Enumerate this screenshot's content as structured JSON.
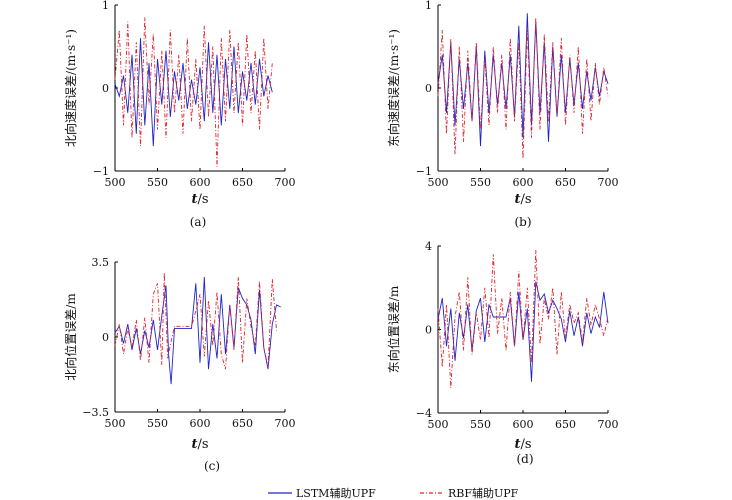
{
  "legend": {
    "lstm_label": "LSTM辅助UPF",
    "rbf_label": "RBF辅助UPF",
    "lstm_color": "#1f24c8",
    "rbf_color": "#e0202a"
  },
  "chart_data": [
    {
      "type": "line",
      "caption": "(a)",
      "ylabel": "北向速度误差/(m·s⁻¹)",
      "xlabel_italic": "t",
      "xlabel_unit": "/s",
      "xlim": [
        500,
        700
      ],
      "ylim": [
        -1,
        1
      ],
      "xticks": [
        500,
        550,
        600,
        650,
        700
      ],
      "yticks": [
        {
          "v": -1,
          "label": "−1"
        },
        {
          "v": 0,
          "label": "0"
        },
        {
          "v": 1,
          "label": "1"
        }
      ],
      "series": [
        {
          "name": "LSTM辅助UPF",
          "color": "#1f24c8",
          "dash": "",
          "x": [
            500,
            505,
            510,
            515,
            520,
            525,
            530,
            535,
            540,
            545,
            550,
            555,
            560,
            565,
            570,
            575,
            580,
            585,
            590,
            595,
            600,
            605,
            610,
            615,
            620,
            625,
            630,
            635,
            640,
            645,
            650,
            655,
            660,
            665,
            670,
            675,
            680,
            685
          ],
          "y": [
            0.05,
            -0.1,
            0.15,
            -0.3,
            0.4,
            -0.55,
            0.6,
            -0.45,
            0.3,
            -0.7,
            0.35,
            -0.2,
            0.45,
            -0.35,
            0.2,
            -0.15,
            0.3,
            -0.25,
            0.1,
            -0.2,
            0.25,
            -0.4,
            0.55,
            -0.3,
            0.4,
            -0.45,
            0.35,
            -0.25,
            0.5,
            -0.3,
            0.2,
            -0.15,
            0.3,
            -0.2,
            0.35,
            -0.1,
            0.15,
            -0.05
          ]
        },
        {
          "name": "RBF辅助UPF",
          "color": "#e0202a",
          "dash": "4,2,1,2",
          "x": [
            500,
            505,
            510,
            515,
            520,
            525,
            530,
            535,
            540,
            545,
            550,
            555,
            560,
            565,
            570,
            575,
            580,
            585,
            590,
            595,
            600,
            605,
            610,
            615,
            620,
            625,
            630,
            635,
            640,
            645,
            650,
            655,
            660,
            665,
            670,
            675,
            680,
            685
          ],
          "y": [
            0.1,
            0.7,
            -0.45,
            0.8,
            -0.6,
            0.55,
            -0.7,
            0.85,
            -0.2,
            0.65,
            -0.5,
            0.45,
            -0.6,
            0.7,
            -0.3,
            0.4,
            -0.55,
            0.6,
            -0.4,
            0.35,
            -0.5,
            0.75,
            -0.35,
            0.5,
            -0.95,
            0.6,
            -0.4,
            0.7,
            -0.3,
            0.55,
            -0.45,
            0.65,
            -0.3,
            0.45,
            -0.5,
            0.6,
            -0.25,
            0.3
          ]
        }
      ]
    },
    {
      "type": "line",
      "caption": "(b)",
      "ylabel": "东向速度误差/(m·s⁻¹)",
      "xlabel_italic": "t",
      "xlabel_unit": "/s",
      "xlim": [
        500,
        700
      ],
      "ylim": [
        -1,
        1
      ],
      "xticks": [
        500,
        550,
        600,
        650,
        700
      ],
      "yticks": [
        {
          "v": -1,
          "label": "−1"
        },
        {
          "v": 0,
          "label": "0"
        },
        {
          "v": 1,
          "label": "1"
        }
      ],
      "series": [
        {
          "name": "LSTM辅助UPF",
          "color": "#1f24c8",
          "dash": "",
          "x": [
            500,
            505,
            510,
            515,
            520,
            525,
            530,
            535,
            540,
            545,
            550,
            555,
            560,
            565,
            570,
            575,
            580,
            585,
            590,
            595,
            600,
            605,
            610,
            615,
            620,
            625,
            630,
            635,
            640,
            645,
            650,
            655,
            660,
            665,
            670,
            675,
            680,
            685,
            690,
            695,
            700
          ],
          "y": [
            0.05,
            0.4,
            -0.3,
            0.55,
            -0.45,
            0.35,
            -0.25,
            0.3,
            -0.4,
            0.5,
            -0.7,
            0.45,
            -0.3,
            0.4,
            -0.2,
            0.3,
            -0.25,
            0.4,
            -0.35,
            0.75,
            -0.6,
            0.9,
            -0.45,
            0.8,
            -0.3,
            0.55,
            -0.65,
            0.5,
            -0.35,
            0.4,
            -0.3,
            0.35,
            -0.2,
            0.3,
            -0.25,
            0.2,
            -0.15,
            0.25,
            -0.1,
            0.2,
            0.05
          ]
        },
        {
          "name": "RBF辅助UPF",
          "color": "#e0202a",
          "dash": "4,2,1,2",
          "x": [
            500,
            505,
            510,
            515,
            520,
            525,
            530,
            535,
            540,
            545,
            550,
            555,
            560,
            565,
            570,
            575,
            580,
            585,
            590,
            595,
            600,
            605,
            610,
            615,
            620,
            625,
            630,
            635,
            640,
            645,
            650,
            655,
            660,
            665,
            670,
            675,
            680,
            685,
            690,
            695,
            700
          ],
          "y": [
            -0.1,
            0.7,
            -0.55,
            0.6,
            -0.8,
            0.5,
            -0.65,
            0.45,
            -0.4,
            0.55,
            -0.5,
            0.35,
            -0.45,
            0.5,
            -0.3,
            0.4,
            -0.5,
            0.6,
            -0.4,
            0.55,
            -0.85,
            0.7,
            -0.6,
            0.85,
            -0.5,
            0.65,
            -0.4,
            0.55,
            -0.35,
            0.6,
            -0.45,
            0.4,
            -0.3,
            0.5,
            -0.55,
            0.35,
            -0.4,
            0.3,
            -0.2,
            0.25,
            -0.1
          ]
        }
      ]
    },
    {
      "type": "line",
      "caption": "(c)",
      "ylabel": "北向位置误差/m",
      "xlabel_italic": "t",
      "xlabel_unit": "/s",
      "xlim": [
        500,
        700
      ],
      "ylim": [
        -3.5,
        3.5
      ],
      "xticks": [
        500,
        550,
        600,
        650,
        700
      ],
      "yticks": [
        {
          "v": -3.5,
          "label": "−3.5"
        },
        {
          "v": 0,
          "label": "0"
        },
        {
          "v": 3.5,
          "label": "3.5"
        }
      ],
      "series": [
        {
          "name": "LSTM辅助UPF",
          "color": "#1f24c8",
          "dash": "",
          "x": [
            500,
            505,
            510,
            515,
            520,
            525,
            530,
            535,
            540,
            545,
            550,
            555,
            560,
            563,
            566,
            570,
            575,
            580,
            585,
            590,
            595,
            600,
            605,
            610,
            615,
            620,
            625,
            630,
            635,
            640,
            645,
            650,
            655,
            660,
            665,
            670,
            675,
            680,
            685,
            690,
            695
          ],
          "y": [
            0.2,
            0.5,
            -0.3,
            0.6,
            -0.6,
            0.4,
            -0.8,
            0.3,
            -0.5,
            0.8,
            -0.6,
            1.0,
            2.4,
            -0.8,
            -2.2,
            0.4,
            0.4,
            0.4,
            0.4,
            0.4,
            2.5,
            -1.2,
            2.8,
            -1.5,
            0.6,
            -1.0,
            2.0,
            -0.8,
            1.5,
            -0.5,
            2.3,
            1.8,
            1.5,
            0.8,
            -0.8,
            2.2,
            -0.5,
            -1.5,
            0.6,
            1.5,
            1.4
          ]
        },
        {
          "name": "RBF辅助UPF",
          "color": "#e0202a",
          "dash": "4,2,1,2",
          "x": [
            500,
            505,
            510,
            515,
            520,
            525,
            530,
            535,
            540,
            545,
            550,
            555,
            558,
            562,
            566,
            570,
            575,
            580,
            585,
            590,
            595,
            600,
            605,
            610,
            615,
            620,
            625,
            630,
            635,
            640,
            645,
            650,
            655,
            660,
            665,
            670,
            675,
            680,
            685,
            690
          ],
          "y": [
            -0.4,
            0.6,
            -0.8,
            0.4,
            -0.5,
            0.8,
            -1.1,
            0.9,
            -1.2,
            2.0,
            2.5,
            -1.3,
            3.0,
            -1.0,
            -0.2,
            0.5,
            0.5,
            0.5,
            0.5,
            0.5,
            1.2,
            2.0,
            -0.9,
            1.7,
            -0.4,
            2.1,
            -0.8,
            -1.5,
            1.5,
            -0.6,
            2.8,
            -1.2,
            1.8,
            0.5,
            -0.4,
            2.6,
            -0.5,
            -1.4,
            2.7,
            0.3
          ]
        }
      ]
    },
    {
      "type": "line",
      "caption": "(d)",
      "ylabel": "东向位置误差/m",
      "xlabel_italic": "t",
      "xlabel_unit": "/s",
      "xlim": [
        500,
        700
      ],
      "ylim": [
        -4,
        4
      ],
      "xticks": [
        500,
        550,
        600,
        650,
        700
      ],
      "yticks": [
        {
          "v": -4,
          "label": "−4"
        },
        {
          "v": 0,
          "label": "0"
        },
        {
          "v": 4,
          "label": "4"
        }
      ],
      "series": [
        {
          "name": "LSTM辅助UPF",
          "color": "#1f24c8",
          "dash": "",
          "x": [
            500,
            505,
            510,
            515,
            520,
            525,
            530,
            535,
            540,
            545,
            550,
            555,
            560,
            565,
            570,
            575,
            580,
            585,
            590,
            595,
            600,
            605,
            610,
            615,
            620,
            625,
            630,
            635,
            640,
            645,
            650,
            655,
            660,
            665,
            670,
            675,
            680,
            685,
            690,
            695,
            700
          ],
          "y": [
            0.5,
            1.5,
            -0.8,
            1.0,
            -1.5,
            0.8,
            -0.4,
            1.2,
            -1.0,
            0.9,
            1.5,
            -0.6,
            1.2,
            0.6,
            0.6,
            0.6,
            0.6,
            1.5,
            -0.8,
            1.8,
            -0.5,
            1.0,
            -2.5,
            2.3,
            1.4,
            1.7,
            0.8,
            1.4,
            1.0,
            0.5,
            -0.6,
            0.9,
            -0.3,
            0.6,
            -0.8,
            0.8,
            -0.2,
            0.6,
            0.1,
            1.8,
            0.3
          ]
        },
        {
          "name": "RBF辅助UPF",
          "color": "#e0202a",
          "dash": "4,2,1,2",
          "x": [
            500,
            505,
            510,
            515,
            520,
            525,
            530,
            535,
            540,
            545,
            550,
            555,
            560,
            565,
            570,
            575,
            580,
            585,
            590,
            595,
            600,
            605,
            610,
            615,
            620,
            625,
            630,
            635,
            640,
            645,
            650,
            655,
            660,
            665,
            670,
            675,
            680,
            685,
            690,
            695,
            700
          ],
          "y": [
            1.0,
            -1.8,
            1.2,
            -2.8,
            0.6,
            1.8,
            -1.0,
            2.5,
            -1.2,
            0.8,
            -0.5,
            2.0,
            -0.4,
            3.6,
            -0.2,
            1.5,
            -1.0,
            1.8,
            -0.8,
            2.8,
            -0.5,
            2.0,
            -1.6,
            3.8,
            -0.7,
            1.5,
            0.5,
            2.0,
            -1.2,
            1.8,
            -0.4,
            1.2,
            0.3,
            0.8,
            -0.6,
            1.5,
            0.2,
            1.2,
            0.5,
            -0.3,
            0.6
          ]
        }
      ]
    }
  ]
}
